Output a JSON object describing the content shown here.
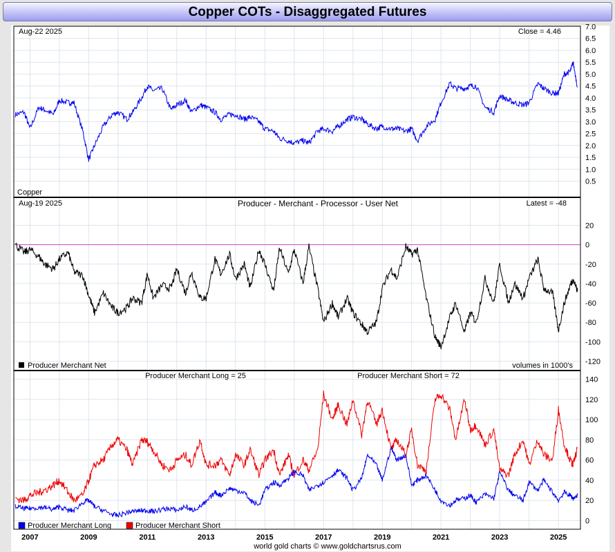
{
  "title": "Copper COTs - Disaggregated Futures",
  "footer": "world gold charts © www.goldchartsrus.com",
  "chart_data": [
    {
      "type": "line",
      "name": "price-panel",
      "date_label": "Aug-22  2025",
      "readout": "Close = 4.46",
      "panel_label": "Copper",
      "ylim": [
        0.5,
        7.0
      ],
      "yticks": [
        "0.5",
        "1.0",
        "1.5",
        "2.0",
        "2.5",
        "3.0",
        "3.5",
        "4.0",
        "4.5",
        "5.0",
        "5.5",
        "6.0",
        "6.5",
        "7.0"
      ],
      "color": "#0000ee",
      "x": [
        2006.5,
        2006.8,
        2007.0,
        2007.3,
        2007.5,
        2007.8,
        2008.0,
        2008.3,
        2008.5,
        2008.8,
        2009.0,
        2009.2,
        2009.5,
        2009.8,
        2010.0,
        2010.3,
        2010.5,
        2010.8,
        2011.0,
        2011.2,
        2011.5,
        2011.8,
        2012.0,
        2012.3,
        2012.5,
        2012.8,
        2013.0,
        2013.3,
        2013.5,
        2013.8,
        2014.0,
        2014.3,
        2014.5,
        2014.8,
        2015.0,
        2015.3,
        2015.5,
        2015.8,
        2016.0,
        2016.3,
        2016.5,
        2016.8,
        2017.0,
        2017.3,
        2017.5,
        2017.8,
        2018.0,
        2018.3,
        2018.5,
        2018.8,
        2019.0,
        2019.3,
        2019.5,
        2019.8,
        2020.0,
        2020.2,
        2020.5,
        2020.8,
        2021.0,
        2021.3,
        2021.5,
        2021.8,
        2022.0,
        2022.2,
        2022.5,
        2022.8,
        2023.0,
        2023.3,
        2023.5,
        2023.8,
        2024.0,
        2024.3,
        2024.5,
        2024.8,
        2025.0,
        2025.2,
        2025.4,
        2025.5,
        2025.65
      ],
      "values": [
        3.3,
        3.4,
        2.7,
        3.6,
        3.5,
        3.3,
        3.9,
        3.8,
        3.8,
        2.6,
        1.4,
        2.0,
        2.8,
        3.3,
        3.4,
        3.1,
        3.4,
        4.0,
        4.5,
        4.3,
        4.4,
        3.5,
        3.7,
        3.9,
        3.4,
        3.7,
        3.6,
        3.4,
        3.1,
        3.3,
        3.3,
        3.1,
        3.2,
        3.0,
        2.7,
        2.6,
        2.3,
        2.2,
        2.1,
        2.2,
        2.1,
        2.6,
        2.7,
        2.6,
        2.8,
        3.1,
        3.2,
        3.1,
        2.9,
        2.7,
        2.8,
        2.7,
        2.7,
        2.6,
        2.7,
        2.2,
        2.8,
        3.1,
        3.8,
        4.6,
        4.4,
        4.4,
        4.5,
        4.5,
        3.6,
        3.4,
        4.1,
        3.9,
        3.8,
        3.7,
        3.8,
        4.6,
        4.4,
        4.2,
        4.2,
        5.0,
        5.1,
        5.5,
        4.46
      ]
    },
    {
      "type": "line",
      "name": "producer-net-panel",
      "date_label": "Aug-19  2025",
      "subtitle": "Producer - Merchant - Processor - User Net",
      "readout": "Latest = -48",
      "legend": "Producer Merchant Net",
      "units_note": "volumes in 1000's",
      "ylim": [
        -120,
        20
      ],
      "yticks": [
        "-120",
        "-100",
        "-80",
        "-60",
        "-40",
        "-20",
        "0",
        "20"
      ],
      "color": "#000000",
      "reference_line": 0,
      "x": [
        2006.5,
        2006.8,
        2007.0,
        2007.3,
        2007.5,
        2007.8,
        2008.0,
        2008.3,
        2008.5,
        2008.8,
        2009.0,
        2009.2,
        2009.5,
        2009.8,
        2010.0,
        2010.3,
        2010.5,
        2010.8,
        2011.0,
        2011.2,
        2011.5,
        2011.8,
        2012.0,
        2012.3,
        2012.5,
        2012.8,
        2013.0,
        2013.3,
        2013.5,
        2013.8,
        2014.0,
        2014.3,
        2014.5,
        2014.8,
        2015.0,
        2015.3,
        2015.5,
        2015.8,
        2016.0,
        2016.3,
        2016.5,
        2016.8,
        2017.0,
        2017.3,
        2017.5,
        2017.8,
        2018.0,
        2018.3,
        2018.5,
        2018.8,
        2019.0,
        2019.3,
        2019.5,
        2019.8,
        2020.0,
        2020.2,
        2020.5,
        2020.8,
        2021.0,
        2021.3,
        2021.5,
        2021.8,
        2022.0,
        2022.2,
        2022.5,
        2022.8,
        2023.0,
        2023.3,
        2023.5,
        2023.8,
        2024.0,
        2024.3,
        2024.5,
        2024.8,
        2025.0,
        2025.2,
        2025.4,
        2025.5,
        2025.65
      ],
      "values": [
        0,
        -8,
        -5,
        -12,
        -20,
        -25,
        -15,
        -8,
        -28,
        -32,
        -52,
        -70,
        -50,
        -65,
        -70,
        -65,
        -55,
        -60,
        -30,
        -55,
        -42,
        -45,
        -25,
        -50,
        -28,
        -55,
        -55,
        -15,
        -30,
        -10,
        -35,
        -20,
        -45,
        -5,
        -20,
        -48,
        -3,
        -30,
        -5,
        -40,
        -2,
        -45,
        -80,
        -60,
        -75,
        -55,
        -70,
        -82,
        -90,
        -80,
        -45,
        -25,
        -35,
        -2,
        -10,
        -5,
        -55,
        -95,
        -105,
        -75,
        -60,
        -90,
        -70,
        -80,
        -35,
        -60,
        -20,
        -60,
        -40,
        -55,
        -35,
        -15,
        -45,
        -50,
        -88,
        -60,
        -42,
        -35,
        -48
      ]
    },
    {
      "type": "line",
      "name": "long-short-panel",
      "long_readout": "Producer Merchant Long = 25",
      "short_readout": "Producer Merchant Short = 72",
      "ylim": [
        0,
        140
      ],
      "yticks": [
        "0",
        "20",
        "40",
        "60",
        "80",
        "100",
        "120",
        "140"
      ],
      "x_axis": {
        "range": [
          2006.45,
          2025.75
        ],
        "ticks": [
          "2007",
          "2009",
          "2011",
          "2013",
          "2015",
          "2017",
          "2019",
          "2021",
          "2023",
          "2025"
        ]
      },
      "x": [
        2006.5,
        2006.8,
        2007.0,
        2007.3,
        2007.5,
        2007.8,
        2008.0,
        2008.3,
        2008.5,
        2008.8,
        2009.0,
        2009.2,
        2009.5,
        2009.8,
        2010.0,
        2010.3,
        2010.5,
        2010.8,
        2011.0,
        2011.2,
        2011.5,
        2011.8,
        2012.0,
        2012.3,
        2012.5,
        2012.8,
        2013.0,
        2013.3,
        2013.5,
        2013.8,
        2014.0,
        2014.3,
        2014.5,
        2014.8,
        2015.0,
        2015.3,
        2015.5,
        2015.8,
        2016.0,
        2016.3,
        2016.5,
        2016.8,
        2017.0,
        2017.3,
        2017.5,
        2017.8,
        2018.0,
        2018.3,
        2018.5,
        2018.8,
        2019.0,
        2019.3,
        2019.5,
        2019.8,
        2020.0,
        2020.2,
        2020.5,
        2020.8,
        2021.0,
        2021.3,
        2021.5,
        2021.8,
        2022.0,
        2022.2,
        2022.5,
        2022.8,
        2023.0,
        2023.3,
        2023.5,
        2023.8,
        2024.0,
        2024.3,
        2024.5,
        2024.8,
        2025.0,
        2025.2,
        2025.4,
        2025.5,
        2025.65
      ],
      "series": [
        {
          "name": "Producer Merchant Long",
          "color": "#0000ee",
          "values": [
            14,
            12,
            12,
            13,
            13,
            11,
            14,
            10,
            10,
            18,
            20,
            14,
            10,
            6,
            5,
            8,
            9,
            10,
            10,
            9,
            11,
            12,
            10,
            14,
            10,
            14,
            18,
            28,
            25,
            32,
            30,
            28,
            20,
            15,
            30,
            38,
            35,
            42,
            48,
            45,
            30,
            35,
            38,
            45,
            50,
            42,
            30,
            42,
            65,
            55,
            40,
            72,
            60,
            65,
            35,
            40,
            45,
            30,
            20,
            15,
            20,
            22,
            25,
            18,
            26,
            22,
            48,
            30,
            25,
            20,
            38,
            30,
            40,
            28,
            20,
            28,
            25,
            22,
            25
          ]
        },
        {
          "name": "Producer Merchant Short",
          "color": "#ee0000",
          "values": [
            22,
            20,
            25,
            28,
            30,
            35,
            40,
            28,
            20,
            25,
            40,
            55,
            60,
            75,
            80,
            70,
            55,
            80,
            78,
            70,
            55,
            50,
            60,
            65,
            55,
            80,
            55,
            55,
            60,
            45,
            65,
            55,
            70,
            45,
            60,
            70,
            45,
            65,
            45,
            60,
            50,
            70,
            125,
            100,
            115,
            95,
            120,
            85,
            120,
            95,
            110,
            70,
            80,
            65,
            90,
            55,
            50,
            120,
            125,
            110,
            80,
            120,
            90,
            95,
            75,
            90,
            50,
            45,
            65,
            80,
            55,
            80,
            65,
            60,
            110,
            75,
            60,
            55,
            72
          ]
        }
      ]
    }
  ]
}
